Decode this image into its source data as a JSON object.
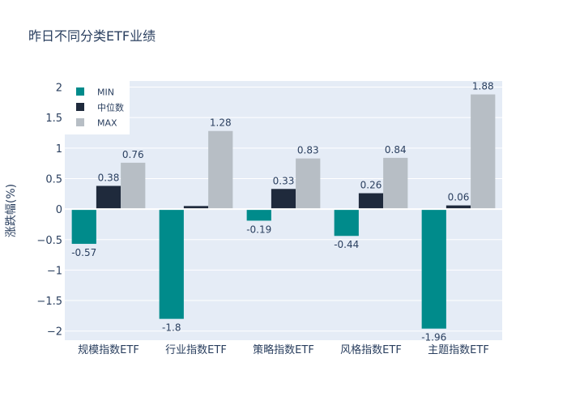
{
  "chart_data": {
    "type": "bar",
    "title": "昨日不同分类ETF业绩",
    "xlabel": "",
    "ylabel": "涨跌幅(%)",
    "ylim": [
      -2.15,
      2.1
    ],
    "yticks": [
      -2,
      -1.5,
      -1,
      -0.5,
      0,
      0.5,
      1,
      1.5,
      2
    ],
    "ytick_labels": [
      "−2",
      "−1.5",
      "−1",
      "−0.5",
      "0",
      "0.5",
      "1",
      "1.5",
      "2"
    ],
    "categories": [
      "规模指数ETF",
      "行业指数ETF",
      "策略指数ETF",
      "风格指数ETF",
      "主题指数ETF"
    ],
    "series": [
      {
        "name": "MIN",
        "color": "#008b8b",
        "values": [
          -0.57,
          -1.8,
          -0.19,
          -0.44,
          -1.96
        ],
        "labels": [
          "-0.57",
          "-1.8",
          "-0.19",
          "-0.44",
          "-1.96"
        ]
      },
      {
        "name": "中位数",
        "color": "#1f2a3c",
        "values": [
          0.38,
          0.05,
          0.33,
          0.26,
          0.06
        ],
        "labels": [
          "0.38",
          "",
          "0.33",
          "0.26",
          "0.06"
        ]
      },
      {
        "name": "MAX",
        "color": "#b7bec5",
        "values": [
          0.76,
          1.28,
          0.83,
          0.84,
          1.88
        ],
        "labels": [
          "0.76",
          "1.28",
          "0.83",
          "0.84",
          "1.88"
        ]
      }
    ],
    "legend_position": "top-left",
    "grid": true,
    "plot_bg": "#e5ecf6"
  }
}
